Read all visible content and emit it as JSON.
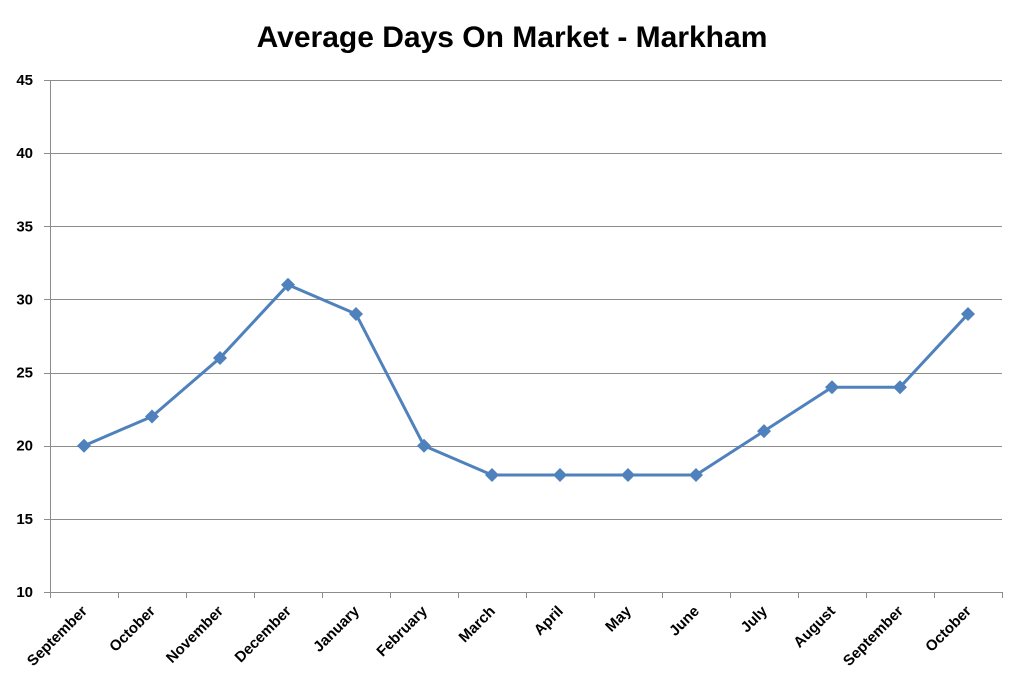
{
  "chart_data": {
    "type": "line",
    "title": "Average Days On Market - Markham",
    "xlabel": "",
    "ylabel": "",
    "categories": [
      "September",
      "October",
      "November",
      "December",
      "January",
      "February",
      "March",
      "April",
      "May",
      "June",
      "July",
      "August",
      "September",
      "October"
    ],
    "series": [
      {
        "values": [
          20,
          22,
          26,
          31,
          29,
          20,
          18,
          18,
          18,
          18,
          21,
          24,
          24,
          29
        ],
        "color": "#4f81bd",
        "marker": "diamond"
      }
    ],
    "ylim": [
      10,
      45
    ],
    "yticks": [
      10,
      15,
      20,
      25,
      30,
      35,
      40,
      45
    ],
    "grid": true,
    "legend": "none"
  }
}
